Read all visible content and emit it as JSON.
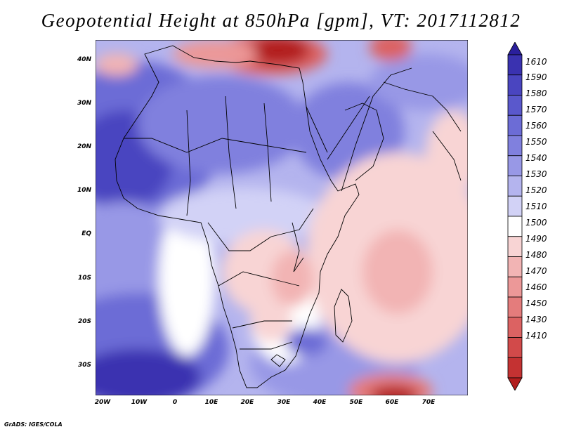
{
  "title": "Geopotential Height at 850hPa [gpm], VT: 2017112812",
  "lat_labels": [
    "40N",
    "30N",
    "20N",
    "10N",
    "EQ",
    "10S",
    "20S",
    "30S"
  ],
  "lon_labels": [
    "20W",
    "10W",
    "0",
    "10E",
    "20E",
    "30E",
    "40E",
    "50E",
    "60E",
    "70E"
  ],
  "colorbar": {
    "labels": [
      "1610",
      "1590",
      "1580",
      "1570",
      "1560",
      "1550",
      "1540",
      "1530",
      "1520",
      "1510",
      "1500",
      "1490",
      "1480",
      "1470",
      "1460",
      "1450",
      "1430",
      "1410"
    ],
    "colors": [
      "#2a1f9c",
      "#3a32b0",
      "#4a45c0",
      "#5a58cc",
      "#6c6cd6",
      "#8080de",
      "#9898e6",
      "#b4b4ee",
      "#d2d2f6",
      "#ffffff",
      "#f8d4d4",
      "#f2b4b4",
      "#ec9898",
      "#e47c7c",
      "#dc6262",
      "#d24a4a",
      "#c43232",
      "#b21e1e"
    ]
  },
  "credit": "GrADS: IGES/COLA"
}
